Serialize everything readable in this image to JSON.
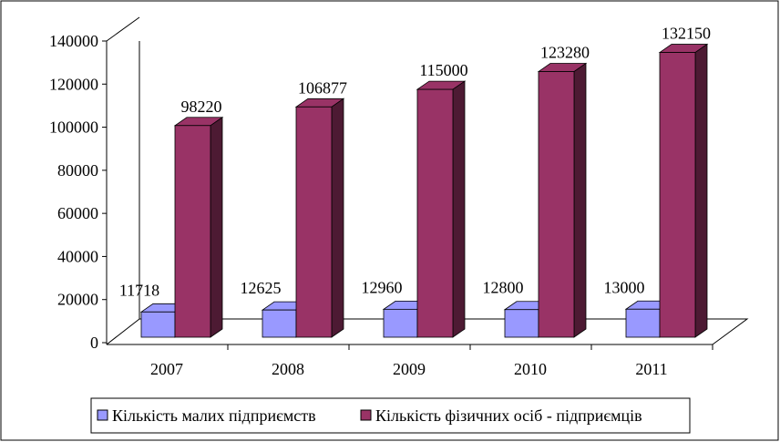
{
  "chart_data": {
    "type": "bar",
    "title": "",
    "categories": [
      "2007",
      "2008",
      "2009",
      "2010",
      "2011"
    ],
    "series": [
      {
        "name": "Кількість малих підприємств",
        "color": "#9999ff",
        "values": [
          11718,
          12625,
          12960,
          12800,
          13000
        ]
      },
      {
        "name": "Кількість фізичних осіб - підприємців",
        "color": "#993366",
        "values": [
          98220,
          106877,
          115000,
          123280,
          132150
        ]
      }
    ],
    "yticks": [
      "0",
      "20000",
      "40000",
      "60000",
      "80000",
      "100000",
      "120000",
      "140000"
    ],
    "ylim": [
      0,
      140000
    ],
    "legend_position": "bottom",
    "grid": false
  }
}
